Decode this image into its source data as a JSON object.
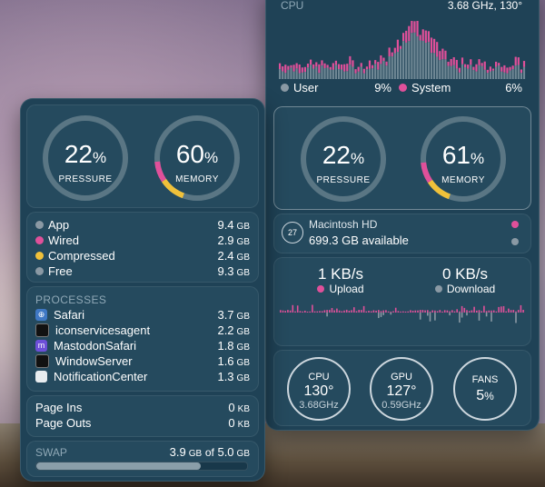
{
  "colors": {
    "pink": "#e0509a",
    "yellow": "#f0c13a",
    "gray": "#8a99a4",
    "blue": "#3f78c4",
    "track": "#5a7684"
  },
  "cpu_panel": {
    "header_label": "CPU",
    "header_info": "3.68 GHz, 130°",
    "user_label": "User",
    "user_value": "9%",
    "system_label": "System",
    "system_value": "6%"
  },
  "left_panel": {
    "pressure": {
      "value": "22",
      "pct": "%",
      "label": "PRESSURE"
    },
    "memory": {
      "value": "60",
      "pct": "%",
      "label": "MEMORY",
      "segments": {
        "yellow": 0.1,
        "pink": 0.08
      }
    },
    "breakdown": [
      {
        "label": "App",
        "value": "9.4",
        "unit": "GB",
        "color": "gray"
      },
      {
        "label": "Wired",
        "value": "2.9",
        "unit": "GB",
        "color": "pink"
      },
      {
        "label": "Compressed",
        "value": "2.4",
        "unit": "GB",
        "color": "yellow"
      },
      {
        "label": "Free",
        "value": "9.3",
        "unit": "GB",
        "color": "gray"
      }
    ],
    "processes_header": "PROCESSES",
    "processes": [
      {
        "name": "Safari",
        "value": "3.7",
        "unit": "GB",
        "icon": "safari-icon"
      },
      {
        "name": "iconservicesagent",
        "value": "2.2",
        "unit": "GB",
        "icon": "terminal-icon"
      },
      {
        "name": "MastodonSafari",
        "value": "1.8",
        "unit": "GB",
        "icon": "mastodon-icon"
      },
      {
        "name": "WindowServer",
        "value": "1.6",
        "unit": "GB",
        "icon": "terminal-icon"
      },
      {
        "name": "NotificationCenter",
        "value": "1.3",
        "unit": "GB",
        "icon": "notification-icon"
      }
    ],
    "page_ins": {
      "label": "Page Ins",
      "value": "0",
      "unit": "KB"
    },
    "page_outs": {
      "label": "Page Outs",
      "value": "0",
      "unit": "KB"
    },
    "swap": {
      "label": "SWAP",
      "used": "3.9",
      "of": "of",
      "total": "5.0",
      "unit": "GB",
      "fill": 0.78
    }
  },
  "right_panel": {
    "pressure": {
      "value": "22",
      "pct": "%",
      "label": "PRESSURE"
    },
    "memory": {
      "value": "61",
      "pct": "%",
      "label": "MEMORY",
      "segments": {
        "yellow": 0.1,
        "pink": 0.08
      }
    },
    "disk": {
      "badge": "27",
      "name": "Macintosh HD",
      "available": "699.3 GB available"
    },
    "network": {
      "upload_value": "1 KB/s",
      "upload_label": "Upload",
      "download_value": "0 KB/s",
      "download_label": "Download"
    },
    "cpu": {
      "title": "CPU",
      "value": "130°",
      "sub": "3.68GHz",
      "fill": 0.68
    },
    "gpu": {
      "title": "GPU",
      "value": "127°",
      "sub": "0.59GHz",
      "fill": 0.65
    },
    "fans": {
      "title": "FANS",
      "value": "5",
      "pct": "%",
      "fill": 0.05
    }
  }
}
